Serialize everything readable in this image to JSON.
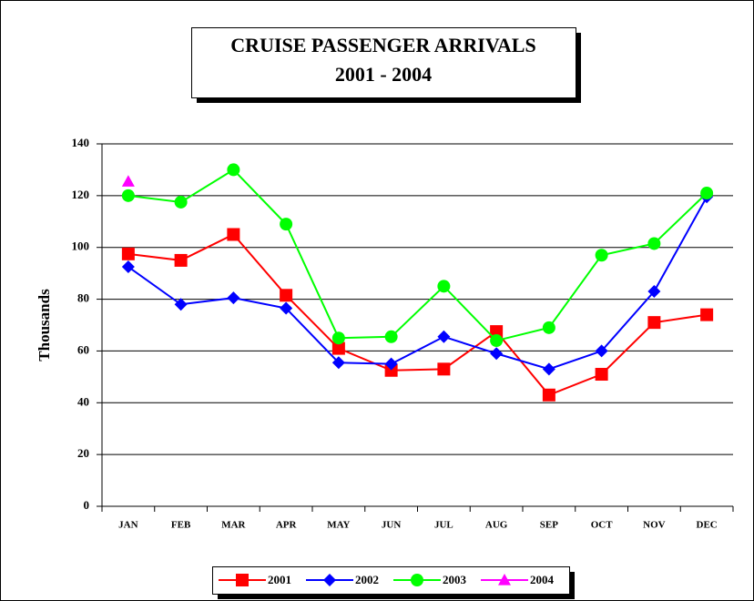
{
  "chart_data": {
    "type": "line",
    "title": "CRUISE PASSENGER ARRIVALS",
    "subtitle": "2001 - 2004",
    "y_label": "Thousands",
    "categories": [
      "JAN",
      "FEB",
      "MAR",
      "APR",
      "MAY",
      "JUN",
      "JUL",
      "AUG",
      "SEP",
      "OCT",
      "NOV",
      "DEC"
    ],
    "series": [
      {
        "name": "2001",
        "color": "#ff0000",
        "marker": "square",
        "values": [
          97.5,
          95,
          105,
          81.5,
          61,
          52.5,
          53,
          67.5,
          43,
          51,
          71,
          74
        ]
      },
      {
        "name": "2002",
        "color": "#0000ff",
        "marker": "diamond",
        "values": [
          92.5,
          78,
          80.5,
          76.5,
          55.5,
          55,
          65.5,
          59,
          53,
          60,
          83,
          119.5
        ]
      },
      {
        "name": "2003",
        "color": "#00ff00",
        "marker": "circle",
        "values": [
          120,
          117.5,
          130,
          109,
          65,
          65.5,
          85,
          64,
          69,
          97,
          101.5,
          121
        ]
      },
      {
        "name": "2004",
        "color": "#ff00ff",
        "marker": "triangle",
        "values": [
          125.5,
          null,
          null,
          null,
          null,
          null,
          null,
          null,
          null,
          null,
          null,
          null
        ]
      }
    ],
    "ylim": [
      0,
      140
    ],
    "yticks": [
      0,
      20,
      40,
      60,
      80,
      100,
      120,
      140
    ],
    "grid": true,
    "legend": "bottom"
  }
}
